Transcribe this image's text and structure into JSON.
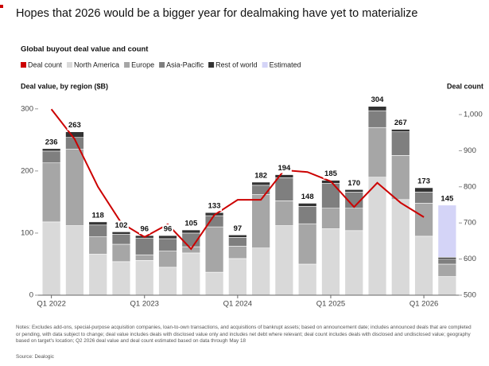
{
  "chart_data": {
    "type": "bar",
    "title": "Hopes that 2026 would be a bigger year for dealmaking have yet to materialize",
    "subtitle": "Global buyout deal value and count",
    "y_label": "Deal value, by region ($B)",
    "y2_label": "Deal count",
    "categories": [
      "Q1 2022",
      null,
      null,
      null,
      "Q1 2023",
      null,
      null,
      null,
      "Q1 2024",
      null,
      null,
      null,
      "Q1 2025",
      null,
      null,
      null,
      "Q1 2026",
      null
    ],
    "series": [
      {
        "name": "Deal count",
        "color": "#cc0000",
        "axis": "y2",
        "kind": "line",
        "values": [
          1015,
          932,
          800,
          700,
          661,
          696,
          628,
          722,
          764,
          764,
          846,
          841,
          815,
          744,
          811,
          756,
          716,
          null
        ]
      },
      {
        "name": "North America",
        "color": "#d9d9d9",
        "values": [
          118,
          112,
          66,
          54,
          56,
          45,
          68,
          37,
          59,
          76,
          112,
          50,
          107,
          104,
          190,
          154,
          95,
          30
        ]
      },
      {
        "name": "Europe",
        "color": "#a6a6a6",
        "values": [
          95,
          123,
          28,
          28,
          9,
          26,
          10,
          73,
          20,
          86,
          40,
          65,
          33,
          36,
          80,
          71,
          53,
          20
        ]
      },
      {
        "name": "Asia-Pacific",
        "color": "#7f7f7f",
        "values": [
          19,
          19,
          19,
          16,
          27,
          20,
          22,
          18,
          14,
          15,
          37,
          28,
          40,
          26,
          27,
          38,
          18,
          8
        ]
      },
      {
        "name": "Rest of world",
        "color": "#333333",
        "values": [
          4,
          9,
          5,
          4,
          4,
          5,
          5,
          5,
          4,
          5,
          5,
          5,
          5,
          4,
          7,
          4,
          7,
          3
        ]
      },
      {
        "name": "Estimated",
        "color": "#d4d4f7",
        "values": [
          null,
          null,
          null,
          null,
          null,
          null,
          null,
          null,
          null,
          null,
          null,
          null,
          null,
          null,
          null,
          null,
          null,
          84
        ]
      }
    ],
    "totals": [
      236,
      263,
      118,
      102,
      96,
      96,
      105,
      133,
      97,
      182,
      194,
      148,
      185,
      170,
      304,
      267,
      173,
      145
    ],
    "ylim": [
      0,
      310
    ],
    "yticks": [
      0,
      100,
      200,
      300
    ],
    "y2lim": [
      500,
      1033
    ],
    "y2ticks": [
      500,
      600,
      700,
      800,
      900,
      {
        "value": 1000,
        "label": "1,000"
      }
    ],
    "notes": "Notes: Excludes add-ons, special-purpose acquisition companies, loan-to-own transactions, and acquisitions of bankrupt assets; based on announcement date; includes announced deals that are completed or pending, with data subject to change; deal value includes deals with disclosed value only and includes net debt where relevant; deal count includes deals with disclosed and undisclosed value; geography based on target's location; Q2 2026 deal value and deal count estimated based on data through May 18",
    "source": "Source: Dealogic"
  }
}
